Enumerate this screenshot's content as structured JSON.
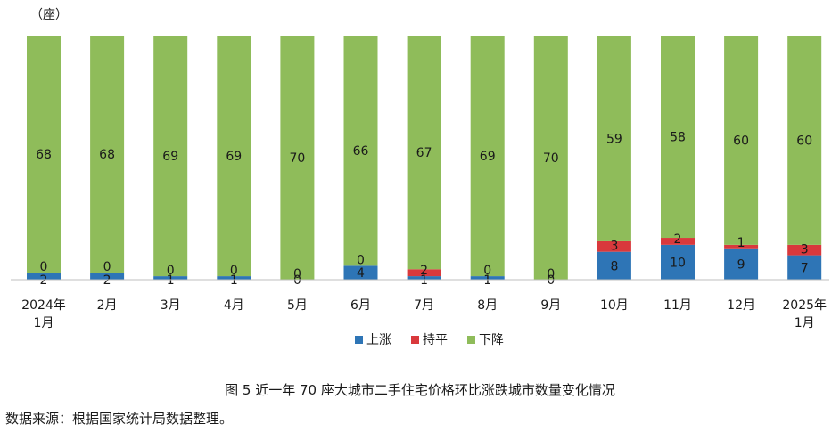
{
  "chart_data": {
    "type": "bar",
    "stacked": true,
    "unit_label": "（座）",
    "categories": [
      [
        "2024年",
        "1月"
      ],
      [
        "2月"
      ],
      [
        "3月"
      ],
      [
        "4月"
      ],
      [
        "5月"
      ],
      [
        "6月"
      ],
      [
        "7月"
      ],
      [
        "8月"
      ],
      [
        "9月"
      ],
      [
        "10月"
      ],
      [
        "11月"
      ],
      [
        "12月"
      ],
      [
        "2025年",
        "1月"
      ]
    ],
    "series": [
      {
        "name": "上涨",
        "color": "#2e75b6",
        "values": [
          2,
          2,
          1,
          1,
          0,
          4,
          1,
          1,
          0,
          8,
          10,
          9,
          7
        ]
      },
      {
        "name": "持平",
        "color": "#d9393c",
        "values": [
          0,
          0,
          0,
          0,
          0,
          0,
          2,
          0,
          0,
          3,
          2,
          1,
          3
        ]
      },
      {
        "name": "下降",
        "color": "#8fbc5a",
        "values": [
          68,
          68,
          69,
          69,
          70,
          66,
          67,
          69,
          70,
          59,
          58,
          60,
          60
        ]
      }
    ],
    "ylim": [
      0,
      70
    ],
    "legend_position": "bottom",
    "grid": false
  },
  "caption": "图 5  近一年 70 座大城市二手住宅价格环比涨跌城市数量变化情况",
  "source": "数据来源：根据国家统计局数据整理。"
}
